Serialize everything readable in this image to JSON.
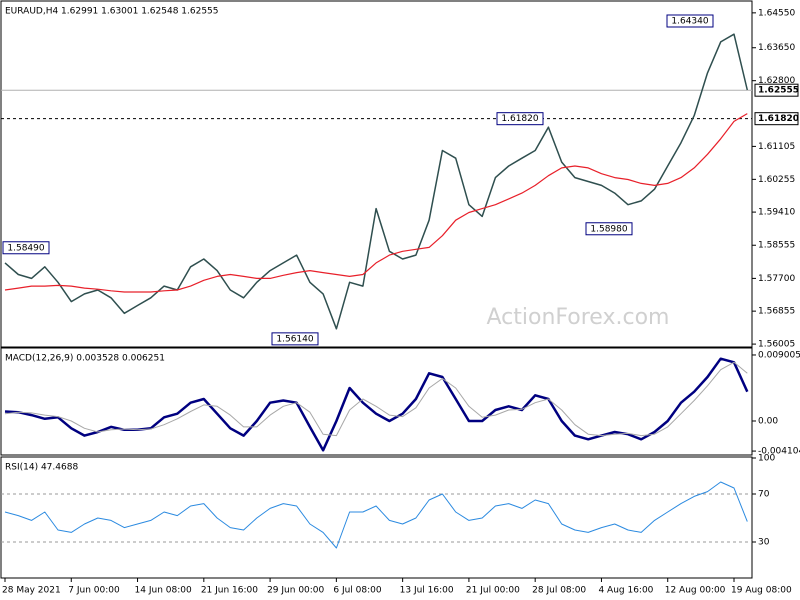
{
  "chart_data": [
    {
      "type": "line",
      "title": "EURAUD,H4  1.62991 1.63001 1.62548 1.62555",
      "watermark": "ActionForex.com",
      "ylim": [
        1.5593,
        1.6483
      ],
      "yticks": [
        {
          "value": 1.6455,
          "label": "1.64550"
        },
        {
          "value": 1.6365,
          "label": "1.63650"
        },
        {
          "value": 1.628,
          "label": "1.62800"
        },
        {
          "value": 1.61105,
          "label": "1.61105"
        },
        {
          "value": 1.60255,
          "label": "1.60255"
        },
        {
          "value": 1.5941,
          "label": "1.59410"
        },
        {
          "value": 1.58555,
          "label": "1.58555"
        },
        {
          "value": 1.577,
          "label": "1.57700"
        },
        {
          "value": 1.56855,
          "label": "1.56855"
        },
        {
          "value": 1.56005,
          "label": "1.56005"
        }
      ],
      "hlines": [
        {
          "value": 1.62555,
          "label": "1.62555",
          "style": "solid"
        },
        {
          "value": 1.6182,
          "label": "1.61820",
          "style": "dashed"
        }
      ],
      "annotations": [
        {
          "value": 1.6434,
          "label": "1.64340"
        },
        {
          "value": 1.6182,
          "label": "1.61820"
        },
        {
          "value": 1.5898,
          "label": "1.58980"
        },
        {
          "value": 1.5849,
          "label": "1.58490"
        },
        {
          "value": 1.5614,
          "label": "1.56140"
        }
      ],
      "series": [
        {
          "color": "#2f4f4f",
          "values": [
            1.581,
            1.578,
            1.577,
            1.58,
            1.576,
            1.571,
            1.573,
            1.574,
            1.572,
            1.568,
            1.57,
            1.572,
            1.575,
            1.574,
            1.58,
            1.582,
            1.579,
            1.574,
            1.572,
            1.576,
            1.579,
            1.581,
            1.583,
            1.576,
            1.573,
            1.564,
            1.576,
            1.575,
            1.595,
            1.584,
            1.582,
            1.583,
            1.592,
            1.61,
            1.608,
            1.596,
            1.593,
            1.603,
            1.606,
            1.608,
            1.61,
            1.616,
            1.607,
            1.603,
            1.602,
            1.601,
            1.599,
            1.596,
            1.597,
            1.6,
            1.606,
            1.612,
            1.619,
            1.63,
            1.638,
            1.64,
            1.6256
          ]
        },
        {
          "color": "#e8202a",
          "values": [
            1.574,
            1.5745,
            1.575,
            1.575,
            1.5752,
            1.575,
            1.5745,
            1.5742,
            1.5738,
            1.5735,
            1.5735,
            1.5735,
            1.5738,
            1.574,
            1.575,
            1.5765,
            1.5775,
            1.578,
            1.5775,
            1.577,
            1.577,
            1.5778,
            1.5785,
            1.579,
            1.5785,
            1.578,
            1.5775,
            1.578,
            1.581,
            1.583,
            1.584,
            1.5845,
            1.585,
            1.588,
            1.592,
            1.594,
            1.595,
            1.596,
            1.5975,
            1.599,
            1.601,
            1.6035,
            1.6055,
            1.606,
            1.6055,
            1.604,
            1.603,
            1.6025,
            1.6015,
            1.601,
            1.6015,
            1.603,
            1.6055,
            1.609,
            1.613,
            1.6175,
            1.6195
          ]
        }
      ]
    },
    {
      "type": "line",
      "title": "MACD(12,26,9) 0.003528 0.006251",
      "ylim": [
        -0.00464,
        0.00982
      ],
      "yticks": [
        0.009005,
        {
          "value": 0,
          "label": "0.00"
        },
        -0.004104
      ],
      "series": [
        {
          "color": "#000080",
          "width": 2.5,
          "values": [
            0.0013,
            0.0012,
            0.0008,
            0.0003,
            0.0005,
            -0.001,
            -0.002,
            -0.0015,
            -0.0008,
            -0.0012,
            -0.0012,
            -0.001,
            0.0005,
            0.001,
            0.0025,
            0.003,
            0.001,
            -0.001,
            -0.002,
            0,
            0.0025,
            0.0028,
            0.0025,
            -0.0008,
            -0.004,
            0,
            0.0045,
            0.0025,
            0.001,
            0,
            0.001,
            0.003,
            0.0065,
            0.006,
            0.003,
            0,
            0,
            0.0015,
            0.002,
            0.0015,
            0.0035,
            0.003,
            0,
            -0.002,
            -0.0025,
            -0.002,
            -0.0015,
            -0.0018,
            -0.0025,
            -0.0015,
            0,
            0.0025,
            0.004,
            0.006,
            0.0085,
            0.008,
            0.004
          ]
        },
        {
          "color": "#a8a8a8",
          "width": 1,
          "values": [
            0.001,
            0.0012,
            0.0011,
            0.0008,
            0.0006,
            0,
            -0.001,
            -0.0015,
            -0.0012,
            -0.0011,
            -0.0012,
            -0.0011,
            -0.0005,
            0.0003,
            0.0013,
            0.0022,
            0.002,
            0.0008,
            -0.0008,
            -0.0008,
            0.0008,
            0.002,
            0.0025,
            0.0012,
            -0.0018,
            -0.002,
            0.0015,
            0.003,
            0.002,
            0.0008,
            0.0006,
            0.0018,
            0.0045,
            0.0058,
            0.0045,
            0.002,
            0.0005,
            0.0008,
            0.0015,
            0.0016,
            0.0025,
            0.003,
            0.0015,
            -0.0005,
            -0.0018,
            -0.002,
            -0.0018,
            -0.0017,
            -0.002,
            -0.0018,
            -0.0008,
            0.001,
            0.0028,
            0.0048,
            0.007,
            0.008,
            0.0065
          ]
        }
      ]
    },
    {
      "type": "line",
      "title": "RSI(14) 47.4688",
      "ylim": [
        0,
        100
      ],
      "yticks": [
        100,
        70,
        30
      ],
      "dashed_levels": [
        70,
        30
      ],
      "categories": [
        "28 May 2021",
        null,
        null,
        null,
        null,
        "7 Jun 00:00",
        null,
        null,
        null,
        null,
        "14 Jun 08:00",
        null,
        null,
        null,
        null,
        "21 Jun 16:00",
        null,
        null,
        null,
        null,
        "29 Jun 00:00",
        null,
        null,
        null,
        null,
        "6 Jul 08:00",
        null,
        null,
        null,
        null,
        "13 Jul 16:00",
        null,
        null,
        null,
        null,
        "21 Jul 00:00",
        null,
        null,
        null,
        null,
        "28 Jul 08:00",
        null,
        null,
        null,
        null,
        "4 Aug 16:00",
        null,
        null,
        null,
        null,
        "12 Aug 00:00",
        null,
        null,
        null,
        null,
        "19 Aug 08:00",
        null
      ],
      "series": [
        {
          "color": "#2b8ae0",
          "width": 1,
          "values": [
            55,
            52,
            48,
            55,
            40,
            38,
            45,
            50,
            48,
            42,
            45,
            48,
            55,
            52,
            60,
            62,
            50,
            42,
            40,
            50,
            58,
            62,
            60,
            45,
            38,
            25,
            55,
            55,
            60,
            48,
            45,
            50,
            65,
            70,
            55,
            48,
            50,
            60,
            62,
            58,
            65,
            62,
            45,
            40,
            38,
            42,
            45,
            40,
            38,
            48,
            55,
            62,
            68,
            72,
            80,
            75,
            47
          ]
        }
      ]
    }
  ]
}
